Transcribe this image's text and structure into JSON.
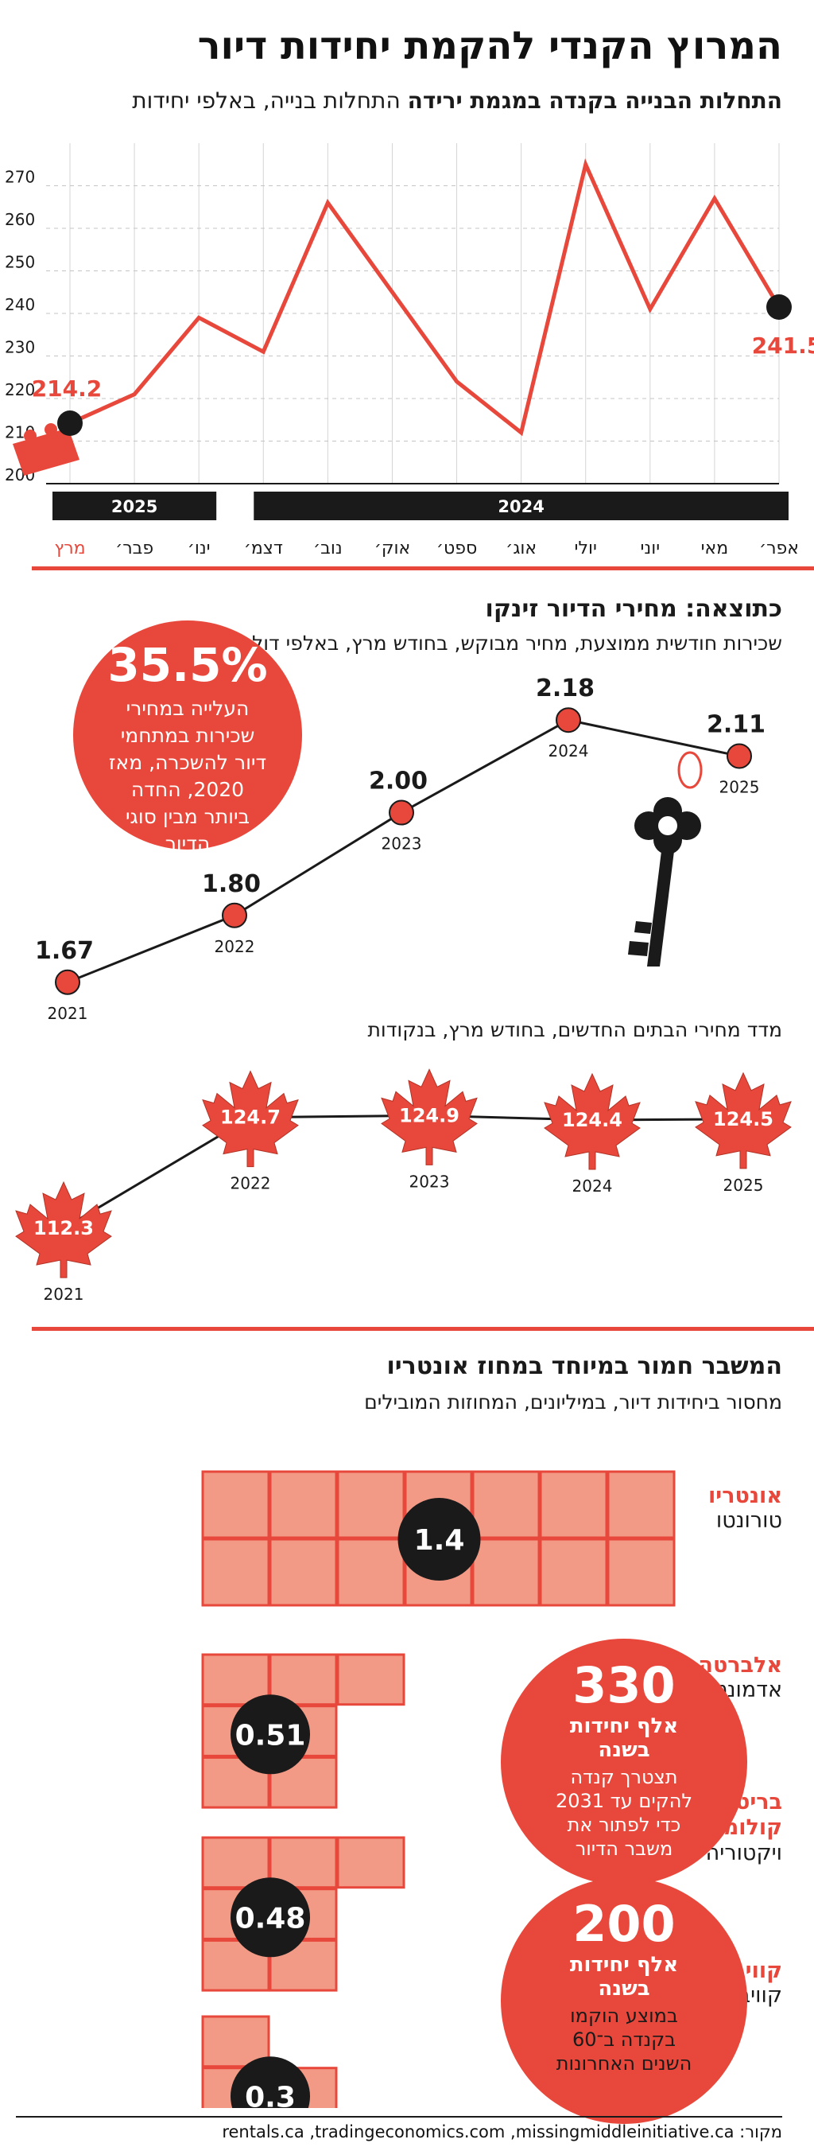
{
  "header": {
    "title": "המרוץ הקנדי להקמת יחידות דיור",
    "subtitle_bold": "התחלות הבנייה בקנדה במגמת ירידה",
    "subtitle_rest": " התחלות בנייה, באלפי יחידות"
  },
  "rent_section": {
    "title": "כתוצאה: מחירי הדיור זינקו",
    "subtitle": "שכירות חודשית ממוצעת, מחיר מבוקש, בחודש מרץ, באלפי דולר קנדי",
    "callout_value": "35.5%",
    "callout_text": "העלייה במחירי שכירות במתחמי דיור להשכרה, מאז 2020, החדה ביותר מבין סוגי הדיור"
  },
  "index_section": {
    "subtitle": "מדד מחירי הבתים החדשים, בחודש מרץ, בנקודות"
  },
  "shortage_section": {
    "title": "המשבר חמור במיוחד במחוז אונטריו",
    "subtitle": "מחסור ביחידות דיור, במיליונים, המחוזות המובילים",
    "provinces": [
      {
        "province": "אונטריו",
        "city": "טורונטו",
        "value": "1.4"
      },
      {
        "province": "אלברטה",
        "city": "אדמונטון",
        "value": "0.51"
      },
      {
        "province": "בריטיש קולומביה",
        "city": "ויקטוריה",
        "value": "0.48"
      },
      {
        "province": "קוויבק",
        "city": "קוויבק סיטי",
        "value": "0.3"
      }
    ],
    "callout1_value": "330",
    "callout1_bold": "אלף יחידות בשנה",
    "callout1_text": "תצטרך קנדה להקים עד 2031 כדי לפתור את משבר הדיור",
    "callout2_value": "200",
    "callout2_bold": "אלף יחידות בשנה",
    "callout2_text": "במוצע הוקמו בקנדה ב־60 השנים האחרונות"
  },
  "footer": {
    "source": "מקור: rentals.ca ,tradingeconomics.com ,missingmiddleinitiative.ca"
  },
  "colors": {
    "accent": "#e8483b",
    "dark": "#1a1a1a",
    "light_accent": "#f29a86"
  },
  "chart_data": [
    {
      "type": "line",
      "title": "התחלות הבנייה בקנדה במגמת ירידה",
      "categories": [
        "אפר׳",
        "מאי",
        "יוני",
        "יולי",
        "אוג׳",
        "ספט׳",
        "אוק׳",
        "נוב׳",
        "דצמ׳",
        "ינו׳",
        "פבר׳",
        "מרץ"
      ],
      "values": [
        241.5,
        267,
        241,
        275,
        212,
        224,
        245,
        266,
        231,
        239,
        221,
        214.2
      ],
      "year_labels": [
        "2024",
        "2025"
      ],
      "ylim": [
        200,
        280
      ],
      "yticks": [
        200,
        210,
        220,
        230,
        240,
        250,
        260,
        270
      ],
      "labeled_points": {
        "first": "241.5",
        "last": "214.2"
      },
      "grid": true
    },
    {
      "type": "line",
      "title": "כתוצאה: מחירי הדיור זינקו",
      "x": [
        "2021",
        "2022",
        "2023",
        "2024",
        "2025"
      ],
      "values": [
        1.67,
        1.8,
        2.0,
        2.18,
        2.11
      ],
      "labels": [
        "1.67",
        "1.80",
        "2.00",
        "2.18",
        "2.11"
      ]
    },
    {
      "type": "line",
      "title": "מדד מחירי הבתים החדשים",
      "x": [
        "2021",
        "2022",
        "2023",
        "2024",
        "2025"
      ],
      "values": [
        112.3,
        124.7,
        124.9,
        124.4,
        124.5
      ],
      "labels": [
        "112.3",
        "124.7",
        "124.9",
        "124.4",
        "124.5"
      ]
    },
    {
      "type": "bar",
      "title": "המשבר חמור במיוחד במחוז אונטריו",
      "categories": [
        "אונטריו",
        "אלברטה",
        "בריטיש קולומביה",
        "קוויבק"
      ],
      "values": [
        1.4,
        0.51,
        0.48,
        0.3
      ]
    }
  ]
}
